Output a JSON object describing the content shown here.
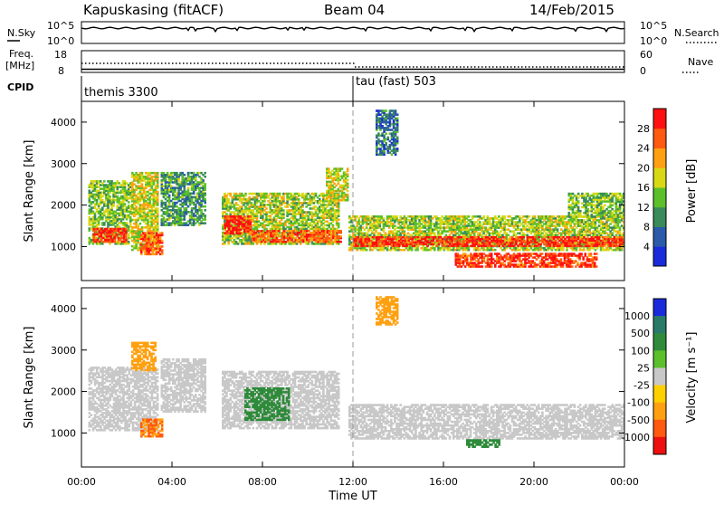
{
  "header": {
    "station": "Kapuskasing (fitACF)",
    "beam": "Beam 04",
    "date": "14/Feb/2015"
  },
  "nsky_panel": {
    "left_label": "N.Sky",
    "right_label": "N.Search",
    "left_ticks": [
      "10^5",
      "10^0"
    ],
    "right_ticks": [
      "10^5",
      "10^0"
    ]
  },
  "freq_panel": {
    "left_label_1": "Freq.",
    "left_label_2": "[MHz]",
    "right_label": "Nave",
    "left_ticks": [
      "18",
      "8"
    ],
    "right_ticks": [
      "60",
      "0"
    ]
  },
  "cpid_panel": {
    "label": "CPID",
    "mode1": "themis 3300",
    "mode2": "tau (fast) 503"
  },
  "chart_data": [
    {
      "type": "heatmap",
      "panel": "power",
      "ylabel": "Slant Range [km]",
      "colorbar_label": "Power [dB]",
      "xlim": [
        "00:00",
        "24:00"
      ],
      "ylim": [
        180,
        4500
      ],
      "yticks": [
        1000,
        2000,
        3000,
        4000
      ],
      "colorbar_ticks": [
        "4",
        "8",
        "12",
        "16",
        "20",
        "24",
        "28"
      ],
      "colorbar_colors": [
        "#1a2bdc",
        "#2a5aa8",
        "#3a8a5a",
        "#5cc02a",
        "#d8d815",
        "#ffa010",
        "#ff5a10",
        "#ff1010"
      ],
      "regions": [
        {
          "t0": 0.3,
          "t1": 2.2,
          "r0": 1050,
          "r1": 2600,
          "level": 0.45
        },
        {
          "t0": 2.2,
          "t1": 3.4,
          "r0": 900,
          "r1": 2800,
          "level": 0.55
        },
        {
          "t0": 0.5,
          "t1": 2.0,
          "r0": 1100,
          "r1": 1450,
          "level": 0.9
        },
        {
          "t0": 2.6,
          "t1": 3.6,
          "r0": 800,
          "r1": 1350,
          "level": 0.85
        },
        {
          "t0": 3.5,
          "t1": 5.5,
          "r0": 1500,
          "r1": 2800,
          "level": 0.35
        },
        {
          "t0": 6.2,
          "t1": 11.4,
          "r0": 1050,
          "r1": 2300,
          "level": 0.5
        },
        {
          "t0": 6.3,
          "t1": 7.5,
          "r0": 1300,
          "r1": 1750,
          "level": 0.9
        },
        {
          "t0": 7.5,
          "t1": 11.5,
          "r0": 1100,
          "r1": 1400,
          "level": 0.8
        },
        {
          "t0": 10.8,
          "t1": 11.8,
          "r0": 2100,
          "r1": 2900,
          "level": 0.55
        },
        {
          "t0": 11.8,
          "t1": 24.0,
          "r0": 900,
          "r1": 1750,
          "level": 0.5
        },
        {
          "t0": 12.0,
          "t1": 24.0,
          "r0": 1000,
          "r1": 1250,
          "level": 0.9
        },
        {
          "t0": 16.5,
          "t1": 22.8,
          "r0": 500,
          "r1": 850,
          "level": 0.88
        },
        {
          "t0": 13.0,
          "t1": 14.0,
          "r0": 3200,
          "r1": 4300,
          "level": 0.25
        },
        {
          "t0": 21.5,
          "t1": 24.0,
          "r0": 1700,
          "r1": 2300,
          "level": 0.45
        }
      ]
    },
    {
      "type": "heatmap",
      "panel": "velocity",
      "ylabel": "Slant Range [km]",
      "xlabel": "Time UT",
      "colorbar_label": "Velocity [m s⁻¹]",
      "xlim": [
        "00:00",
        "24:00"
      ],
      "ylim": [
        180,
        4500
      ],
      "yticks": [
        1000,
        2000,
        3000,
        4000
      ],
      "xticks": [
        "00:00",
        "04:00",
        "08:00",
        "12:00",
        "16:00",
        "20:00",
        "00:00"
      ],
      "colorbar_ticks": [
        "1000",
        "500",
        "100",
        "25",
        "-25",
        "-100",
        "-500",
        "-1000"
      ],
      "colorbar_colors": [
        "#1a2bdc",
        "#2a7a6a",
        "#2e8b3a",
        "#5cc02a",
        "#c8c8c8",
        "#ffd000",
        "#ffa010",
        "#ff5a10",
        "#ee1010"
      ],
      "regions": [
        {
          "t0": 0.3,
          "t1": 3.4,
          "r0": 1050,
          "r1": 2600,
          "v": 0
        },
        {
          "t0": 2.6,
          "t1": 3.6,
          "r0": 900,
          "r1": 1350,
          "v": -300
        },
        {
          "t0": 2.2,
          "t1": 3.3,
          "r0": 2500,
          "r1": 3200,
          "v": -200
        },
        {
          "t0": 3.5,
          "t1": 5.5,
          "r0": 1500,
          "r1": 2800,
          "v": 0
        },
        {
          "t0": 6.2,
          "t1": 11.4,
          "r0": 1100,
          "r1": 2500,
          "v": 0
        },
        {
          "t0": 7.2,
          "t1": 9.2,
          "r0": 1300,
          "r1": 2100,
          "v": 150
        },
        {
          "t0": 11.8,
          "t1": 24.0,
          "r0": 850,
          "r1": 1700,
          "v": 0
        },
        {
          "t0": 13.0,
          "t1": 14.0,
          "r0": 3600,
          "r1": 4300,
          "v": -200
        },
        {
          "t0": 17.0,
          "t1": 18.5,
          "r0": 650,
          "r1": 850,
          "v": 120
        }
      ]
    }
  ]
}
